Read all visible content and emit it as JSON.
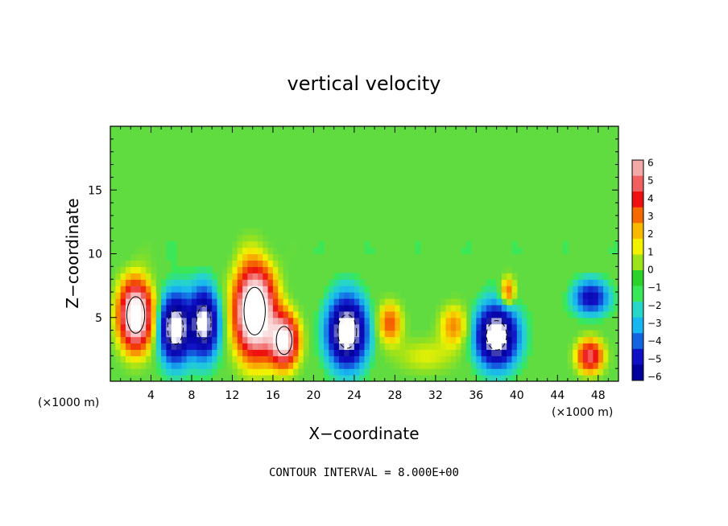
{
  "chart_data": {
    "type": "heatmap",
    "title": "vertical velocity",
    "xlabel": "X−coordinate",
    "ylabel": "Z−coordinate",
    "x_units_left": "(×1000 m)",
    "x_units_right": "(×1000 m)",
    "xlim": [
      0,
      50
    ],
    "ylim": [
      0,
      20
    ],
    "x_ticks": [
      4,
      8,
      12,
      16,
      20,
      24,
      28,
      32,
      36,
      40,
      44,
      48
    ],
    "x_tick_labels": [
      "4",
      "8",
      "12",
      "16",
      "20",
      "24",
      "28",
      "32",
      "36",
      "40",
      "44",
      "48"
    ],
    "y_ticks": [
      5,
      10,
      15
    ],
    "y_tick_labels": [
      "5",
      "10",
      "15"
    ],
    "colorbar": {
      "range": [
        -6,
        6
      ],
      "tick_labels": [
        "6",
        "5",
        "4",
        "3",
        "2",
        "1",
        "0",
        "−1",
        "−2",
        "−3",
        "−4",
        "−5",
        "−6"
      ],
      "colors": [
        "#f4a9a9",
        "#f06060",
        "#ee1010",
        "#f56a00",
        "#f8b800",
        "#f2f200",
        "#9ee21a",
        "#2ad22a",
        "#38e858",
        "#28d6c8",
        "#18b6f0",
        "#1463e0",
        "#1010c4",
        "#00009a"
      ]
    },
    "background_color": "#60dc40",
    "features": [
      {
        "label": "updraft",
        "x": 2.5,
        "z": 5.2,
        "sx": 1.6,
        "sz": 2.6,
        "w": 14
      },
      {
        "label": "downdraft",
        "x": 6.4,
        "z": 4.2,
        "sx": 1.4,
        "sz": 2.4,
        "w": -14
      },
      {
        "label": "downdraft",
        "x": 9.2,
        "z": 4.6,
        "sx": 1.3,
        "sz": 2.4,
        "w": -13
      },
      {
        "label": "updraft",
        "x": 14.2,
        "z": 5.5,
        "sx": 1.9,
        "sz": 3.4,
        "w": 16
      },
      {
        "label": "updraft",
        "x": 17.1,
        "z": 3.2,
        "sx": 1.4,
        "sz": 2.0,
        "w": 12
      },
      {
        "label": "downdraft",
        "x": 23.3,
        "z": 3.9,
        "sx": 1.7,
        "sz": 2.4,
        "w": -15
      },
      {
        "label": "updraft",
        "x": 27.5,
        "z": 4.6,
        "sx": 1.2,
        "sz": 1.6,
        "w": 5
      },
      {
        "label": "updraft",
        "x": 33.8,
        "z": 4.4,
        "sx": 1.4,
        "sz": 1.6,
        "w": 4
      },
      {
        "label": "updraft",
        "x": 31.0,
        "z": 2.0,
        "sx": 3.0,
        "sz": 1.4,
        "w": 2
      },
      {
        "label": "downdraft",
        "x": 38.0,
        "z": 3.6,
        "sx": 1.8,
        "sz": 2.1,
        "w": -15
      },
      {
        "label": "updraft",
        "x": 39.1,
        "z": 7.0,
        "sx": 0.7,
        "sz": 1.2,
        "w": 5
      },
      {
        "label": "downdraft",
        "x": 47.3,
        "z": 6.6,
        "sx": 1.6,
        "sz": 1.2,
        "w": -7
      },
      {
        "label": "updraft",
        "x": 47.2,
        "z": 2.0,
        "sx": 1.3,
        "sz": 1.3,
        "w": 8
      }
    ]
  },
  "footer": {
    "contour_note": "CONTOUR INTERVAL = 8.000E+00"
  }
}
